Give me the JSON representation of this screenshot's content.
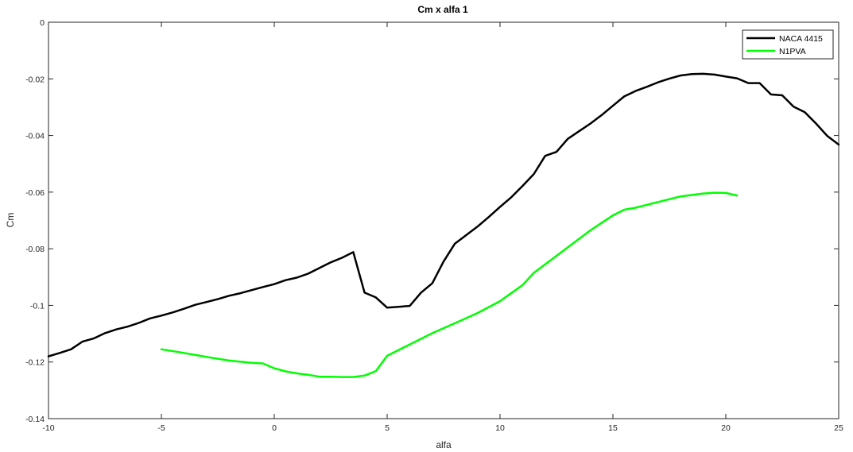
{
  "chart_data": {
    "type": "line",
    "title": "Cm x alfa 1",
    "xlabel": "alfa",
    "ylabel": "Cm",
    "xlim": [
      -10,
      25
    ],
    "ylim": [
      -0.14,
      0
    ],
    "xticks": [
      -10,
      -5,
      0,
      5,
      10,
      15,
      20,
      25
    ],
    "yticks": [
      0,
      -0.02,
      -0.04,
      -0.06,
      -0.08,
      -0.1,
      -0.12,
      -0.14
    ],
    "xtick_labels": [
      "-10",
      "-5",
      "0",
      "5",
      "10",
      "15",
      "20",
      "25"
    ],
    "ytick_labels": [
      "0",
      "-0.02",
      "-0.04",
      "-0.06",
      "-0.08",
      "-0.1",
      "-0.12",
      "-0.14"
    ],
    "grid": false,
    "legend_position": "top-right",
    "series": [
      {
        "name": "NACA 4415",
        "color": "#000000",
        "x": [
          -10,
          -9.5,
          -9,
          -8.5,
          -8,
          -7.5,
          -7,
          -6.5,
          -6,
          -5.5,
          -5,
          -4.5,
          -4,
          -3.5,
          -3,
          -2.5,
          -2,
          -1.5,
          -1,
          -0.5,
          0,
          0.5,
          1,
          1.5,
          2,
          2.5,
          3,
          3.5,
          4,
          4.5,
          5,
          5.5,
          6,
          6.5,
          7,
          7.5,
          8,
          8.5,
          9,
          9.5,
          10,
          10.5,
          11,
          11.5,
          12,
          12.5,
          13,
          13.5,
          14,
          14.5,
          15,
          15.5,
          16,
          16.5,
          17,
          17.5,
          18,
          18.5,
          19,
          19.5,
          20,
          20.5,
          21,
          21.5,
          22,
          22.5,
          23,
          23.5,
          24,
          24.5,
          25
        ],
        "y": [
          -0.118,
          -0.1168,
          -0.1155,
          -0.1128,
          -0.1117,
          -0.1098,
          -0.1085,
          -0.1075,
          -0.1062,
          -0.1046,
          -0.1036,
          -0.1025,
          -0.1012,
          -0.0998,
          -0.0988,
          -0.0978,
          -0.0966,
          -0.0957,
          -0.0946,
          -0.0935,
          -0.0925,
          -0.0911,
          -0.0902,
          -0.0888,
          -0.0868,
          -0.0848,
          -0.0832,
          -0.0812,
          -0.0955,
          -0.0972,
          -0.1008,
          -0.1005,
          -0.1002,
          -0.0955,
          -0.0922,
          -0.0845,
          -0.0782,
          -0.0752,
          -0.0722,
          -0.0688,
          -0.0652,
          -0.0618,
          -0.0578,
          -0.0536,
          -0.0472,
          -0.0458,
          -0.0412,
          -0.0385,
          -0.0358,
          -0.0328,
          -0.0295,
          -0.0262,
          -0.0243,
          -0.0228,
          -0.0212,
          -0.0199,
          -0.0188,
          -0.0183,
          -0.0182,
          -0.0185,
          -0.0192,
          -0.0198,
          -0.0215,
          -0.0215,
          -0.0255,
          -0.0258,
          -0.0298,
          -0.0318,
          -0.0358,
          -0.0402,
          -0.0432
        ]
      },
      {
        "name": "N1PVA",
        "color": "#00ff00",
        "x": [
          -5,
          -4,
          -3,
          -2,
          -1,
          -0.5,
          0,
          0.5,
          1,
          1.5,
          2,
          2.5,
          3,
          3.5,
          4,
          4.5,
          5,
          6,
          7,
          8,
          9,
          10,
          11,
          11.5,
          12,
          13,
          14,
          15,
          15.5,
          16,
          17,
          18,
          19,
          19.5,
          20,
          20.5
        ],
        "y": [
          -0.1155,
          -0.1168,
          -0.1182,
          -0.1195,
          -0.1203,
          -0.1205,
          -0.1222,
          -0.1233,
          -0.124,
          -0.1245,
          -0.1252,
          -0.1252,
          -0.1253,
          -0.1253,
          -0.1248,
          -0.1232,
          -0.1178,
          -0.1138,
          -0.1098,
          -0.1063,
          -0.1027,
          -0.0985,
          -0.0928,
          -0.0885,
          -0.0855,
          -0.0795,
          -0.0735,
          -0.0682,
          -0.0662,
          -0.0655,
          -0.0635,
          -0.0615,
          -0.0605,
          -0.0602,
          -0.0603,
          -0.0612
        ]
      }
    ]
  }
}
